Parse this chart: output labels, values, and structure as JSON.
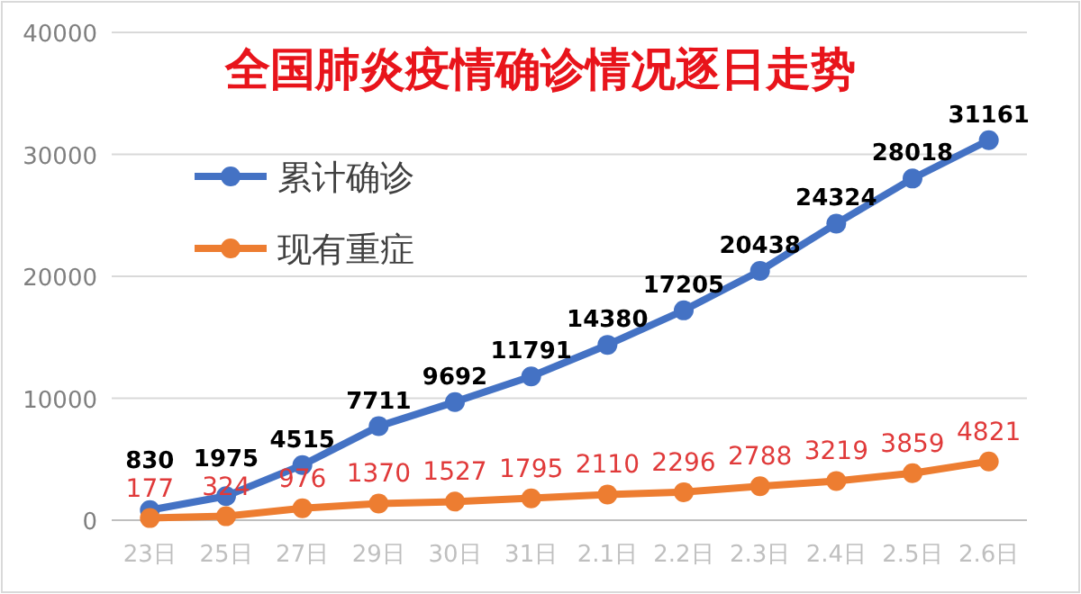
{
  "chart_data": {
    "type": "line",
    "title": "全国肺炎疫情确诊情况逐日走势",
    "categories": [
      "23日",
      "25日",
      "27日",
      "29日",
      "30日",
      "31日",
      "2.1日",
      "2.2日",
      "2.3日",
      "2.4日",
      "2.5日",
      "2.6日"
    ],
    "series": [
      {
        "name": "累计确诊",
        "color": "#4472c4",
        "values": [
          830,
          1975,
          4515,
          7711,
          9692,
          11791,
          14380,
          17205,
          20438,
          24324,
          28018,
          31161
        ]
      },
      {
        "name": "现有重症",
        "color": "#ed7d31",
        "values": [
          177,
          324,
          976,
          1370,
          1527,
          1795,
          2110,
          2296,
          2788,
          3219,
          3859,
          4821
        ]
      }
    ],
    "ylim": [
      0,
      40000
    ],
    "yticks": [
      0,
      10000,
      20000,
      30000,
      40000
    ],
    "grid": "y",
    "legend": "top left",
    "marker": "circle",
    "data_labels": true
  }
}
